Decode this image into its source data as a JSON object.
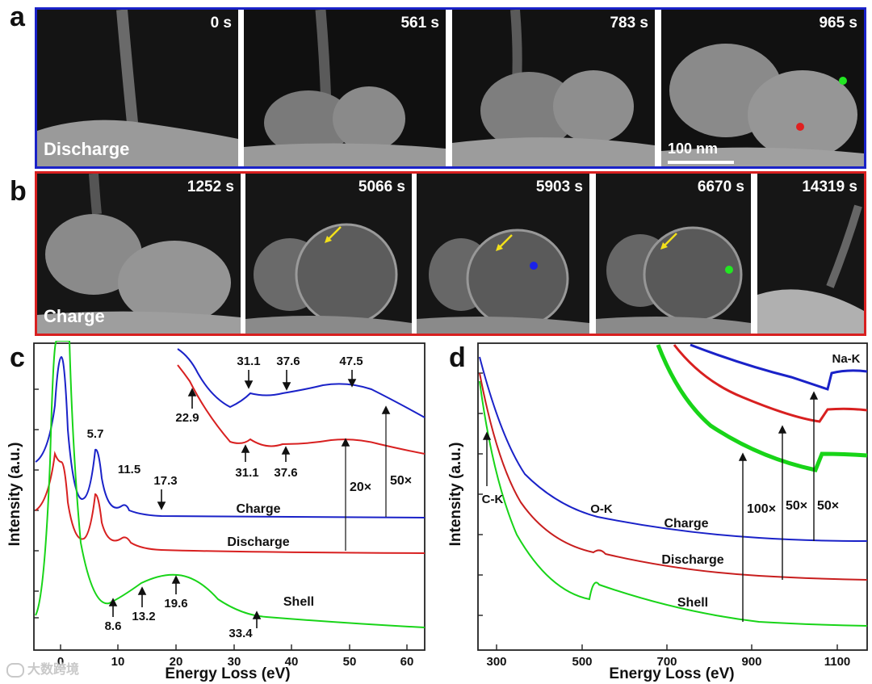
{
  "panel_a": {
    "letter": "a",
    "times": [
      "0 s",
      "561 s",
      "783 s",
      "965 s"
    ],
    "label": "Discharge",
    "scale_bar": "100 nm",
    "frame_color": "#1a22c8"
  },
  "panel_b": {
    "letter": "b",
    "times": [
      "1252 s",
      "5066 s",
      "5903 s",
      "6670 s",
      "14319 s"
    ],
    "label": "Charge",
    "frame_color": "#d82020"
  },
  "panel_c": {
    "letter": "c",
    "chart_data": {
      "type": "line",
      "xlabel": "Energy Loss (eV)",
      "ylabel": "Intensity (a.u.)",
      "xlim": [
        -4,
        62
      ],
      "xticks": [
        "0",
        "10",
        "20",
        "30",
        "40",
        "50",
        "60"
      ],
      "series": [
        {
          "name": "Charge",
          "color": "#1a22c8",
          "peaks": [
            "5.7",
            "11.5",
            "17.3"
          ]
        },
        {
          "name": "Discharge",
          "color": "#d82020"
        },
        {
          "name": "Shell",
          "color": "#18d418",
          "peaks": [
            "8.6",
            "13.2",
            "19.6",
            "33.4"
          ]
        }
      ],
      "inset_peaks_blue": [
        "31.1",
        "37.6",
        "47.5"
      ],
      "inset_peaks_red": [
        "22.9",
        "31.1",
        "37.6"
      ],
      "magnifications": [
        "20×",
        "50×"
      ]
    }
  },
  "panel_d": {
    "letter": "d",
    "chart_data": {
      "type": "line",
      "xlabel": "Energy Loss (eV)",
      "ylabel": "Intensity (a.u.)",
      "xlim": [
        270,
        1180
      ],
      "xticks": [
        "300",
        "500",
        "700",
        "900",
        "1100"
      ],
      "series": [
        {
          "name": "Charge",
          "color": "#1a22c8"
        },
        {
          "name": "Discharge",
          "color": "#c81e1e"
        },
        {
          "name": "Shell",
          "color": "#18d418"
        }
      ],
      "edges": [
        "C-K",
        "O-K",
        "Na-K"
      ],
      "magnifications": [
        "100×",
        "50×",
        "50×"
      ]
    }
  },
  "watermark": "大数跨境"
}
